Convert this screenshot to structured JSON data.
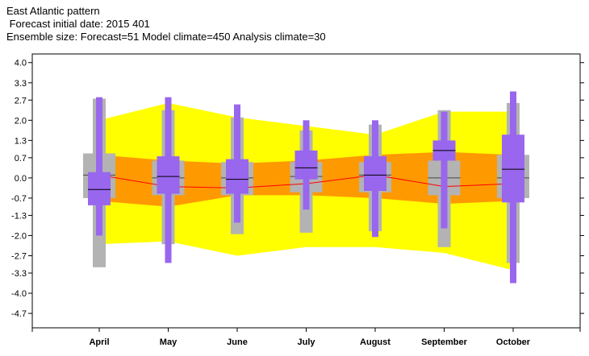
{
  "titles": {
    "line1": "East Atlantic pattern",
    "line2": " Forecast initial date: 2015 401",
    "line3": "Ensemble size: Forecast=51 Model climate=450 Analysis climate=30"
  },
  "colors": {
    "outer_band": "#ffff00",
    "inner_band": "#ff9900",
    "climate_box": "#b3b3b3",
    "forecast_box": "#9966ee",
    "mean_line": "#ff0000",
    "median_line": "#000000"
  },
  "chart_data": {
    "type": "box",
    "title": "East Atlantic pattern",
    "categories": [
      "April",
      "May",
      "June",
      "July",
      "August",
      "September",
      "October"
    ],
    "ylim": [
      -5.2,
      4.3
    ],
    "yticks": [
      "4.0",
      "3.3",
      "2.7",
      "2.0",
      "1.3",
      "0.7",
      "0.0",
      "-0.7",
      "-1.3",
      "-2.0",
      "-2.7",
      "-3.3",
      "-4.0",
      "-4.7"
    ],
    "ytick_values": [
      4.0,
      3.3,
      2.7,
      2.0,
      1.3,
      0.7,
      0.0,
      -0.7,
      -1.3,
      -2.0,
      -2.7,
      -3.3,
      -4.0,
      -4.7
    ],
    "analysis_climate_outer": {
      "upper": [
        2.0,
        2.6,
        2.1,
        1.8,
        1.5,
        2.3,
        2.3
      ],
      "lower": [
        -2.3,
        -2.2,
        -2.7,
        -2.4,
        -2.4,
        -2.6,
        -3.2
      ]
    },
    "analysis_climate_inner": {
      "upper": [
        0.8,
        0.6,
        0.5,
        0.6,
        0.8,
        0.9,
        0.8
      ],
      "lower": [
        -0.8,
        -1.0,
        -0.6,
        -0.6,
        -0.7,
        -0.9,
        -0.8
      ]
    },
    "analysis_climate_median": [
      0.1,
      -0.3,
      -0.35,
      -0.2,
      0.1,
      -0.3,
      -0.2
    ],
    "model_climate": [
      {
        "min": -3.1,
        "q1": -0.7,
        "median": 0.1,
        "q3": 0.85,
        "max": 2.75
      },
      {
        "min": -2.3,
        "q1": -0.6,
        "median": 0.0,
        "q3": 0.6,
        "max": 2.35
      },
      {
        "min": -1.95,
        "q1": -0.6,
        "median": 0.0,
        "q3": 0.55,
        "max": 2.1
      },
      {
        "min": -1.9,
        "q1": -0.5,
        "median": 0.05,
        "q3": 0.55,
        "max": 1.65
      },
      {
        "min": -1.85,
        "q1": -0.5,
        "median": 0.1,
        "q3": 0.55,
        "max": 1.85
      },
      {
        "min": -2.4,
        "q1": -0.6,
        "median": 0.0,
        "q3": 0.6,
        "max": 2.35
      },
      {
        "min": -2.95,
        "q1": -0.7,
        "median": 0.0,
        "q3": 0.8,
        "max": 2.6
      }
    ],
    "forecast": [
      {
        "min": -2.0,
        "q1": -0.95,
        "median": -0.4,
        "q3": 0.2,
        "max": 2.8
      },
      {
        "min": -2.95,
        "q1": -0.55,
        "median": 0.05,
        "q3": 0.75,
        "max": 2.8
      },
      {
        "min": -1.55,
        "q1": -0.55,
        "median": -0.05,
        "q3": 0.65,
        "max": 2.55
      },
      {
        "min": -1.1,
        "q1": -0.05,
        "median": 0.35,
        "q3": 0.95,
        "max": 2.0
      },
      {
        "min": -2.05,
        "q1": -0.45,
        "median": 0.1,
        "q3": 0.75,
        "max": 2.0
      },
      {
        "min": -1.75,
        "q1": 0.6,
        "median": 0.95,
        "q3": 1.3,
        "max": 2.3
      },
      {
        "min": -3.65,
        "q1": -0.85,
        "median": 0.3,
        "q3": 1.5,
        "max": 3.0
      }
    ]
  }
}
